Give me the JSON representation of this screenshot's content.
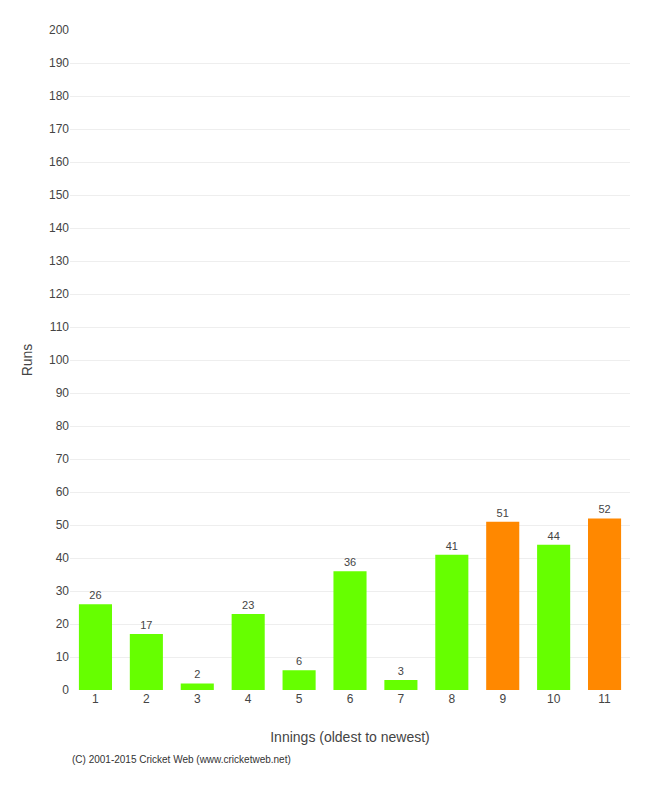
{
  "chart_data": {
    "type": "bar",
    "xlabel": "Innings (oldest to newest)",
    "ylabel": "Runs",
    "categories": [
      "1",
      "2",
      "3",
      "4",
      "5",
      "6",
      "7",
      "8",
      "9",
      "10",
      "11"
    ],
    "values": [
      26,
      17,
      2,
      23,
      6,
      36,
      3,
      41,
      51,
      44,
      52
    ],
    "colors": [
      "#66ff00",
      "#66ff00",
      "#66ff00",
      "#66ff00",
      "#66ff00",
      "#66ff00",
      "#66ff00",
      "#66ff00",
      "#ff8800",
      "#66ff00",
      "#ff8800"
    ],
    "ylim": [
      0,
      200
    ],
    "yticks": [
      0,
      10,
      20,
      30,
      40,
      50,
      60,
      70,
      80,
      90,
      100,
      110,
      120,
      130,
      140,
      150,
      160,
      170,
      180,
      190,
      200
    ],
    "grid": true,
    "data_labels": true,
    "annotations": [
      "(C) 2001-2015 Cricket Web (www.cricketweb.net)"
    ]
  }
}
